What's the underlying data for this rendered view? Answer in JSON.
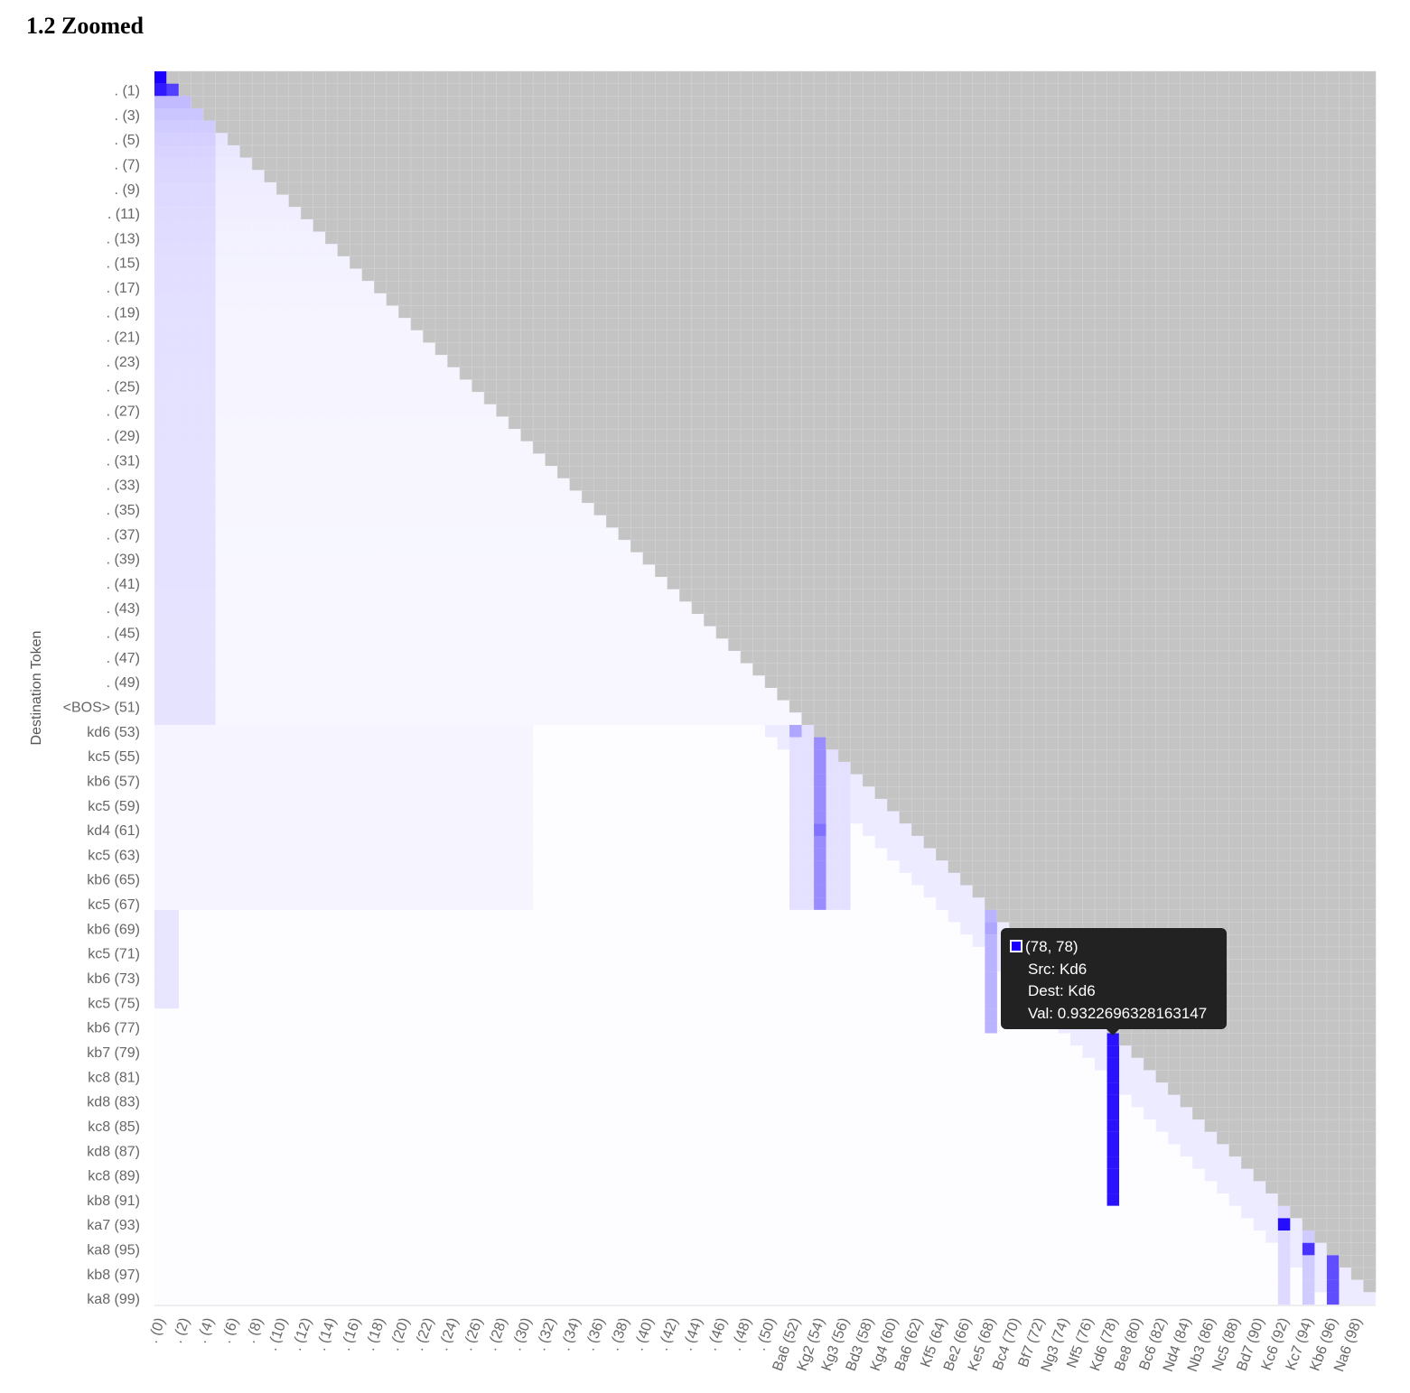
{
  "page": {
    "section_title": "1.2 Zoomed"
  },
  "colors": {
    "masked": "#c4c4c4",
    "grid": "#d6d6d6",
    "high": "#1a00ff",
    "low": "#ffffff",
    "tooltip_bg": "#222222"
  },
  "chart_data": {
    "type": "heatmap",
    "title": "",
    "ylabel": "Destination Token",
    "xlabel": "",
    "n": 100,
    "mask": "upper-triangle",
    "value_range": [
      0,
      1
    ],
    "tokens": [
      ".",
      ".",
      ".",
      ".",
      ".",
      ".",
      ".",
      ".",
      ".",
      ".",
      ".",
      ".",
      ".",
      ".",
      ".",
      ".",
      ".",
      ".",
      ".",
      ".",
      ".",
      ".",
      ".",
      ".",
      ".",
      ".",
      ".",
      ".",
      ".",
      ".",
      ".",
      ".",
      ".",
      ".",
      ".",
      ".",
      ".",
      ".",
      ".",
      ".",
      ".",
      ".",
      ".",
      ".",
      ".",
      ".",
      ".",
      ".",
      ".",
      ".",
      ".",
      "<BOS>",
      "Ba6",
      "kd6",
      "Kg2",
      "kc5",
      "Kg3",
      "kb6",
      "Bd3",
      "kc5",
      "Kg4",
      "kd4",
      "Ba6",
      "kc5",
      "Kf5",
      "kb6",
      "Be2",
      "kc5",
      "Ke5",
      "kb6",
      "Bc4",
      "kc5",
      "Bf7",
      "kb6",
      "Ng3",
      "kc5",
      "Nf5",
      "kb6",
      "Kd6",
      "kb7",
      "Be8",
      "kc8",
      "Bc6",
      "kd8",
      "Nd4",
      "kc8",
      "Nb3",
      "kd8",
      "Nc5",
      "kc8",
      "Bd7",
      "kb8",
      "Kc6",
      "ka7",
      "Kc7",
      "ka8",
      "Kb6",
      "kb8",
      "Na6",
      "ka8"
    ],
    "x_tick_labels": [
      ". (0)",
      ". (2)",
      ". (4)",
      ". (6)",
      ". (8)",
      ". (10)",
      ". (12)",
      ". (14)",
      ". (16)",
      ". (18)",
      ". (20)",
      ". (22)",
      ". (24)",
      ". (26)",
      ". (28)",
      ". (30)",
      ". (32)",
      ". (34)",
      ". (36)",
      ". (38)",
      ". (40)",
      ". (42)",
      ". (44)",
      ". (46)",
      ". (48)",
      ". (50)",
      "Ba6 (52)",
      "Kg2 (54)",
      "Kg3 (56)",
      "Bd3 (58)",
      "Kg4 (60)",
      "Ba6 (62)",
      "Kf5 (64)",
      "Be2 (66)",
      "Ke5 (68)",
      "Bc4 (70)",
      "Bf7 (72)",
      "Ng3 (74)",
      "Nf5 (76)",
      "Kd6 (78)",
      "Be8 (80)",
      "Bc6 (82)",
      "Nd4 (84)",
      "Nb3 (86)",
      "Nc5 (88)",
      "Bd7 (90)",
      "Kc6 (92)",
      "Kc7 (94)",
      "Kb6 (96)",
      "Na6 (98)"
    ],
    "y_tick_labels": [
      ". (1)",
      ". (3)",
      ". (5)",
      ". (7)",
      ". (9)",
      ". (11)",
      ". (13)",
      ". (15)",
      ". (17)",
      ". (19)",
      ". (21)",
      ". (23)",
      ". (25)",
      ". (27)",
      ". (29)",
      ". (31)",
      ". (33)",
      ". (35)",
      ". (37)",
      ". (39)",
      ". (41)",
      ". (43)",
      ". (45)",
      ". (47)",
      ". (49)",
      "<BOS> (51)",
      "kd6 (53)",
      "kc5 (55)",
      "kb6 (57)",
      "kc5 (59)",
      "kd4 (61)",
      "kc5 (63)",
      "kb6 (65)",
      "kc5 (67)",
      "kb6 (69)",
      "kc5 (71)",
      "kb6 (73)",
      "kc5 (75)",
      "kb6 (77)",
      "kb7 (79)",
      "kc8 (81)",
      "kd8 (83)",
      "kc8 (85)",
      "kd8 (87)",
      "kc8 (89)",
      "kb8 (91)",
      "ka7 (93)",
      "ka8 (95)",
      "kb8 (97)",
      "ka8 (99)"
    ],
    "notable_cells": [
      {
        "dest": 0,
        "src": 0,
        "value": 1.0
      },
      {
        "dest": 1,
        "src": 1,
        "value": 0.75
      },
      {
        "dest": 53,
        "src": 52,
        "value": 0.35
      },
      {
        "dest": 56,
        "src": 54,
        "value": 0.45
      },
      {
        "dest": 61,
        "src": 54,
        "value": 0.55
      },
      {
        "dest": 69,
        "src": 68,
        "value": 0.35
      },
      {
        "dest": 78,
        "src": 78,
        "value": 0.9322696328163147
      },
      {
        "dest": 93,
        "src": 92,
        "value": 0.95
      },
      {
        "dest": 95,
        "src": 94,
        "value": 0.8
      },
      {
        "dest": 97,
        "src": 96,
        "value": 0.7
      }
    ]
  },
  "tooltip": {
    "coords": "(78, 78)",
    "src": "Src: Kd6",
    "dest": "Dest: Kd6",
    "val": "Val: 0.9322696328163147"
  }
}
